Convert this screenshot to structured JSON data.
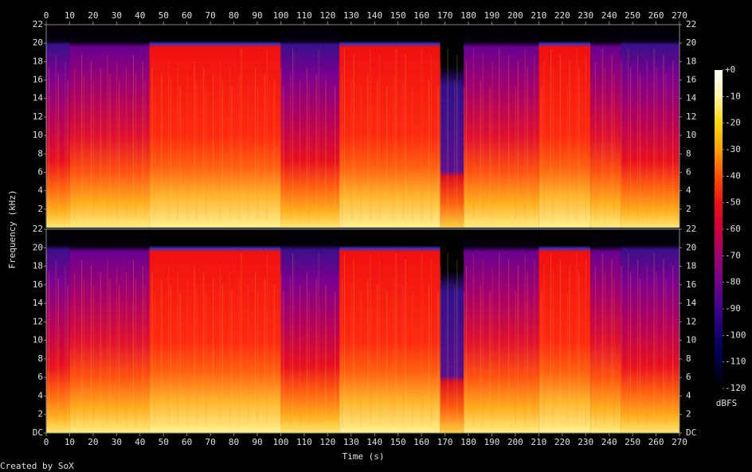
{
  "chart_data": {
    "type": "spectrogram",
    "xlabel": "Time (s)",
    "ylabel": "Frequency (kHz)",
    "xlim": [
      0,
      270
    ],
    "xticks": [
      0,
      10,
      20,
      30,
      40,
      50,
      60,
      70,
      80,
      90,
      100,
      110,
      120,
      130,
      140,
      150,
      160,
      170,
      180,
      190,
      200,
      210,
      220,
      230,
      240,
      250,
      260,
      270
    ],
    "panels": [
      {
        "ylim": [
          0,
          22
        ],
        "yticks": [
          2,
          4,
          6,
          8,
          10,
          12,
          14,
          16,
          18,
          20,
          22
        ]
      },
      {
        "ylim": [
          0,
          22
        ],
        "yticks": [
          {
            "value": 0,
            "label": "DC"
          },
          2,
          4,
          6,
          8,
          10,
          12,
          14,
          16,
          18,
          20,
          22
        ]
      }
    ],
    "colorbar": {
      "label": "dBFS",
      "lim": [
        -120,
        0
      ],
      "ticks": [
        {
          "value": 0,
          "label": "+0"
        },
        -10,
        -20,
        -30,
        -40,
        -50,
        -60,
        -70,
        -80,
        -90,
        -100,
        -110,
        -120
      ]
    }
  },
  "footer": "Created by SoX"
}
